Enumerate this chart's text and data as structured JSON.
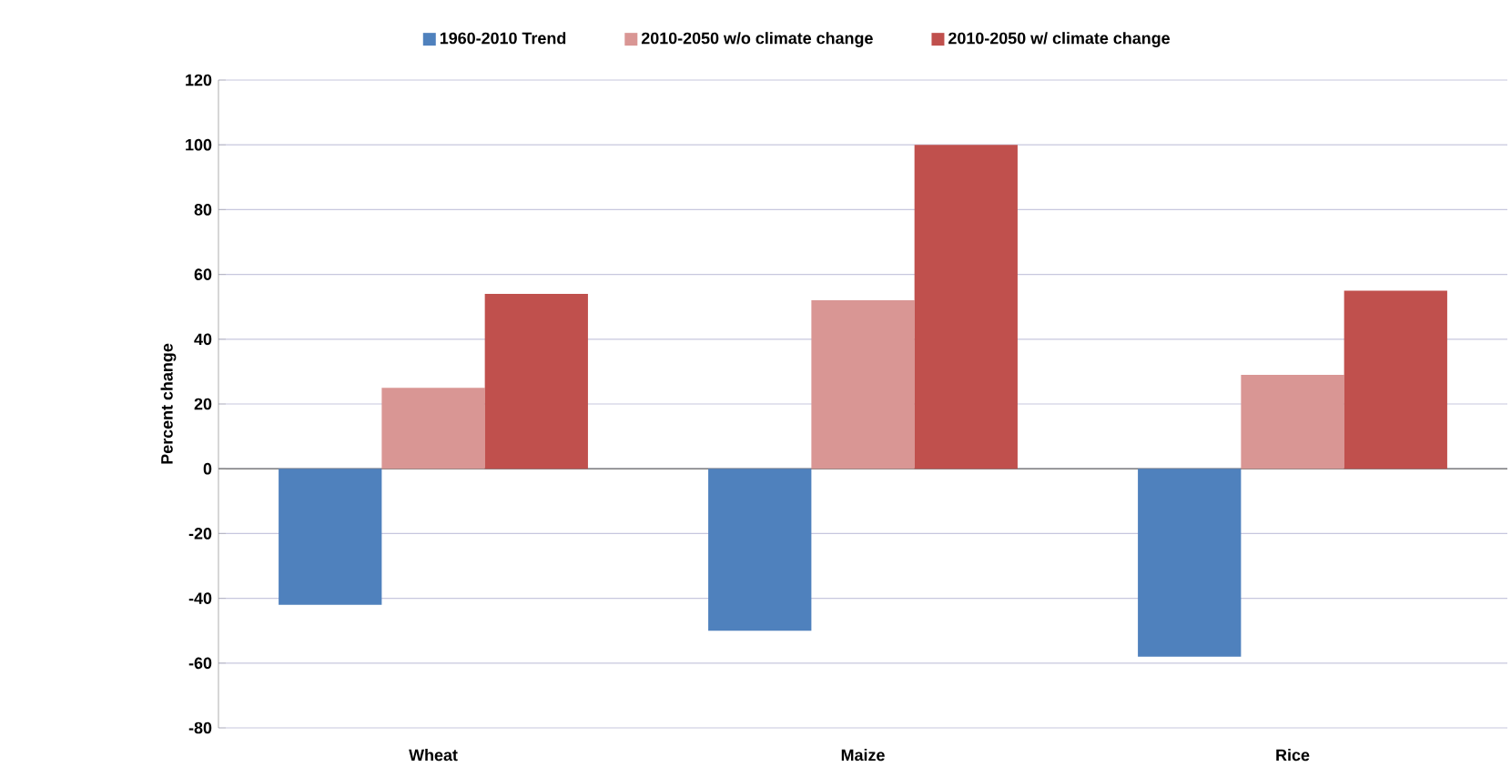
{
  "chart_data": {
    "type": "bar",
    "ylabel": "Percent change",
    "categories": [
      "Wheat",
      "Maize",
      "Rice"
    ],
    "series": [
      {
        "name": "1960-2010 Trend",
        "color": "#4f81bd",
        "values": [
          -42,
          -50,
          -58
        ]
      },
      {
        "name": "2010-2050 w/o climate change",
        "color": "#d99694",
        "values": [
          25,
          52,
          29
        ]
      },
      {
        "name": "2010-2050 w/ climate change",
        "color": "#c0504d",
        "values": [
          54,
          100,
          55
        ]
      }
    ],
    "ylim": [
      -80,
      120
    ],
    "yticks": [
      -80,
      -60,
      -40,
      -20,
      0,
      20,
      40,
      60,
      80,
      100,
      120
    ],
    "grid": "y",
    "legend": "top"
  }
}
